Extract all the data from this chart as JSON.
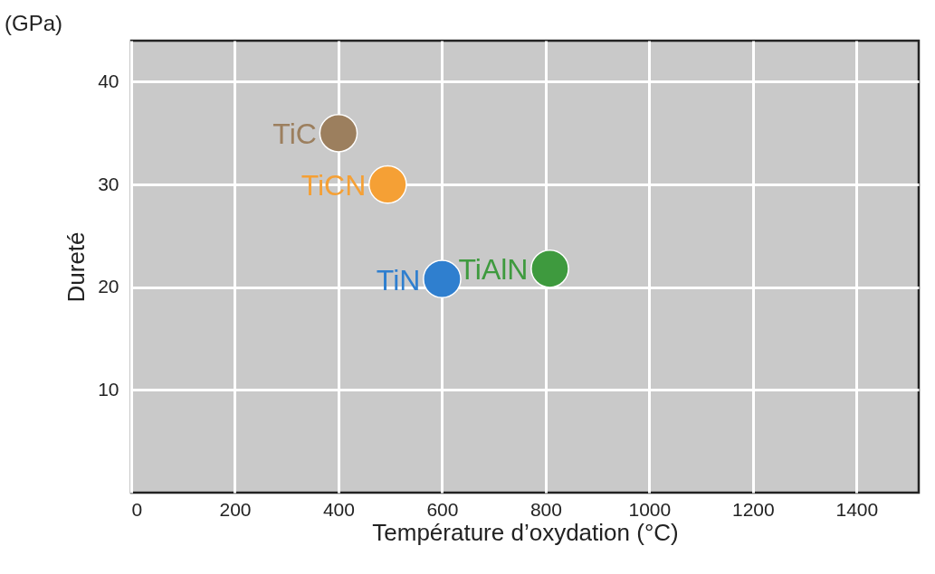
{
  "chart_data": {
    "type": "scatter",
    "xlabel": "Température d’oxydation (°C)",
    "ylabel": "Dureté",
    "annotations": [
      "(GPa)"
    ],
    "xlim": [
      0,
      1520
    ],
    "xticks": [
      0,
      200,
      400,
      600,
      800,
      1000,
      1200,
      1400
    ],
    "ylim": [
      0,
      44
    ],
    "yticks": [
      10,
      20,
      30,
      40
    ],
    "grid": true,
    "marker": "circle",
    "series": [
      {
        "name": "TiC",
        "color": "#9c7f5e",
        "x": [
          400
        ],
        "values": [
          35
        ]
      },
      {
        "name": "TiCN",
        "color": "#f5a035",
        "x": [
          495
        ],
        "values": [
          30
        ]
      },
      {
        "name": "TiN",
        "color": "#2f7fcf",
        "x": [
          600
        ],
        "values": [
          20.8
        ]
      },
      {
        "name": "TiAlN",
        "color": "#3e9a3e",
        "x": [
          808
        ],
        "values": [
          21.8
        ]
      }
    ]
  }
}
